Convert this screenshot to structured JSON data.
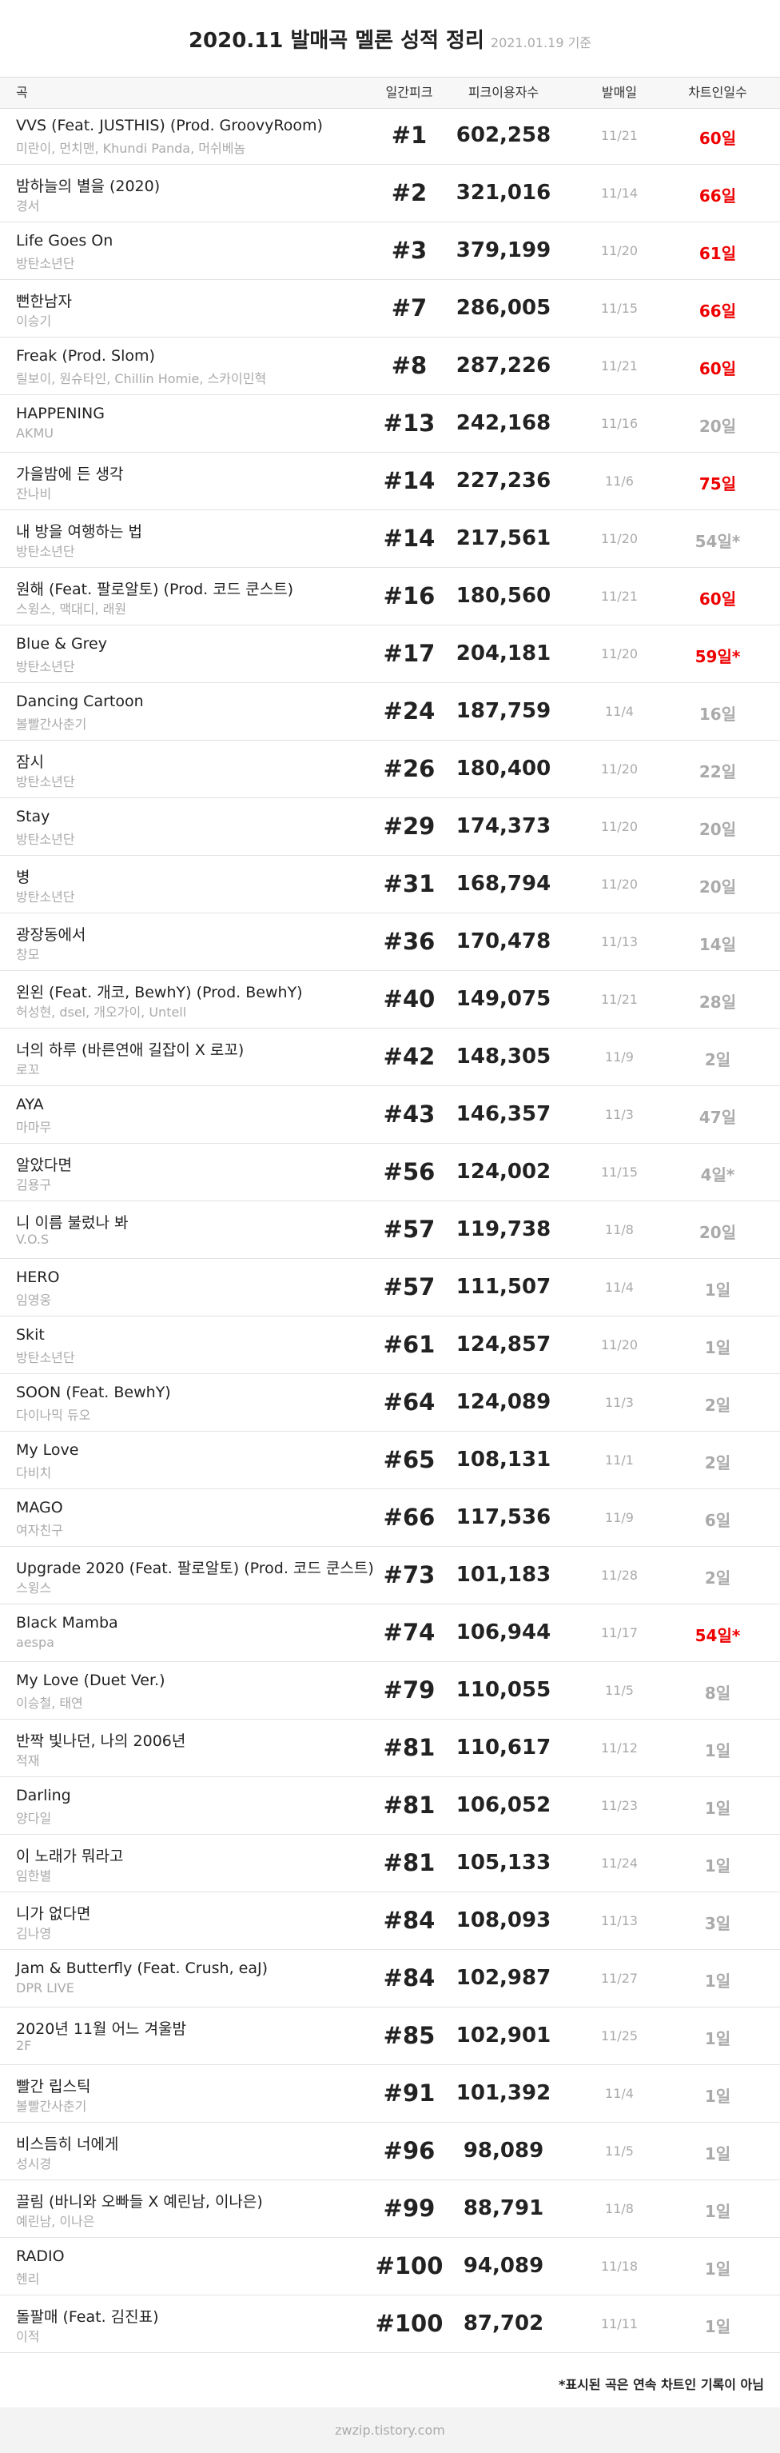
{
  "header": {
    "title": "2020.11 발매곡 멜론 성적 정리",
    "date": "2021.01.19 기준"
  },
  "table": {
    "columns": [
      "곡",
      "일간피크",
      "피크이용자수",
      "발매일",
      "차트인일수"
    ],
    "rows": [
      {
        "song": "VVS (Feat. JUSTHIS) (Prod. GroovyRoom)",
        "artist": "미란이, 먼치맨, Khundi Panda, 머쉬베놈",
        "peak": "#1",
        "users": "602,258",
        "release": "11/21",
        "days": "60일",
        "highlight": true
      },
      {
        "song": "밤하늘의 별을 (2020)",
        "artist": "경서",
        "peak": "#2",
        "users": "321,016",
        "release": "11/14",
        "days": "66일",
        "highlight": true
      },
      {
        "song": "Life Goes On",
        "artist": "방탄소년단",
        "peak": "#3",
        "users": "379,199",
        "release": "11/20",
        "days": "61일",
        "highlight": true
      },
      {
        "song": "뻔한남자",
        "artist": "이승기",
        "peak": "#7",
        "users": "286,005",
        "release": "11/15",
        "days": "66일",
        "highlight": true
      },
      {
        "song": "Freak (Prod. Slom)",
        "artist": "릴보이, 원슈타인, Chillin Homie, 스카이민혁",
        "peak": "#8",
        "users": "287,226",
        "release": "11/21",
        "days": "60일",
        "highlight": true
      },
      {
        "song": "HAPPENING",
        "artist": "AKMU",
        "peak": "#13",
        "users": "242,168",
        "release": "11/16",
        "days": "20일",
        "highlight": false
      },
      {
        "song": "가을밤에 든 생각",
        "artist": "잔나비",
        "peak": "#14",
        "users": "227,236",
        "release": "11/6",
        "days": "75일",
        "highlight": true
      },
      {
        "song": "내 방을 여행하는 법",
        "artist": "방탄소년단",
        "peak": "#14",
        "users": "217,561",
        "release": "11/20",
        "days": "54일*",
        "highlight": false
      },
      {
        "song": "원해 (Feat. 팔로알토) (Prod. 코드 쿤스트)",
        "artist": "스윙스, 맥대디, 래원",
        "peak": "#16",
        "users": "180,560",
        "release": "11/21",
        "days": "60일",
        "highlight": true
      },
      {
        "song": "Blue & Grey",
        "artist": "방탄소년단",
        "peak": "#17",
        "users": "204,181",
        "release": "11/20",
        "days": "59일*",
        "highlight": true
      },
      {
        "song": "Dancing Cartoon",
        "artist": "볼빨간사춘기",
        "peak": "#24",
        "users": "187,759",
        "release": "11/4",
        "days": "16일",
        "highlight": false
      },
      {
        "song": "잠시",
        "artist": "방탄소년단",
        "peak": "#26",
        "users": "180,400",
        "release": "11/20",
        "days": "22일",
        "highlight": false
      },
      {
        "song": "Stay",
        "artist": "방탄소년단",
        "peak": "#29",
        "users": "174,373",
        "release": "11/20",
        "days": "20일",
        "highlight": false
      },
      {
        "song": "병",
        "artist": "방탄소년단",
        "peak": "#31",
        "users": "168,794",
        "release": "11/20",
        "days": "20일",
        "highlight": false
      },
      {
        "song": "광장동에서",
        "artist": "창모",
        "peak": "#36",
        "users": "170,478",
        "release": "11/13",
        "days": "14일",
        "highlight": false
      },
      {
        "song": "왼왼 (Feat. 개코, BewhY) (Prod. BewhY)",
        "artist": "허성현, dsel, 개오가이, Untell",
        "peak": "#40",
        "users": "149,075",
        "release": "11/21",
        "days": "28일",
        "highlight": false
      },
      {
        "song": "너의 하루 (바른연애 길잡이 X 로꼬)",
        "artist": "로꼬",
        "peak": "#42",
        "users": "148,305",
        "release": "11/9",
        "days": "2일",
        "highlight": false
      },
      {
        "song": "AYA",
        "artist": "마마무",
        "peak": "#43",
        "users": "146,357",
        "release": "11/3",
        "days": "47일",
        "highlight": false
      },
      {
        "song": "알았다면",
        "artist": "김용구",
        "peak": "#56",
        "users": "124,002",
        "release": "11/15",
        "days": "4일*",
        "highlight": false
      },
      {
        "song": "니 이름 불렀나 봐",
        "artist": "V.O.S",
        "peak": "#57",
        "users": "119,738",
        "release": "11/8",
        "days": "20일",
        "highlight": false
      },
      {
        "song": "HERO",
        "artist": "임영웅",
        "peak": "#57",
        "users": "111,507",
        "release": "11/4",
        "days": "1일",
        "highlight": false
      },
      {
        "song": "Skit",
        "artist": "방탄소년단",
        "peak": "#61",
        "users": "124,857",
        "release": "11/20",
        "days": "1일",
        "highlight": false
      },
      {
        "song": "SOON (Feat. BewhY)",
        "artist": "다이나믹 듀오",
        "peak": "#64",
        "users": "124,089",
        "release": "11/3",
        "days": "2일",
        "highlight": false
      },
      {
        "song": "My Love",
        "artist": "다비치",
        "peak": "#65",
        "users": "108,131",
        "release": "11/1",
        "days": "2일",
        "highlight": false
      },
      {
        "song": "MAGO",
        "artist": "여자친구",
        "peak": "#66",
        "users": "117,536",
        "release": "11/9",
        "days": "6일",
        "highlight": false
      },
      {
        "song": "Upgrade 2020 (Feat. 팔로알토) (Prod. 코드 쿤스트)",
        "artist": "스윙스",
        "peak": "#73",
        "users": "101,183",
        "release": "11/28",
        "days": "2일",
        "highlight": false
      },
      {
        "song": "Black Mamba",
        "artist": "aespa",
        "peak": "#74",
        "users": "106,944",
        "release": "11/17",
        "days": "54일*",
        "highlight": true
      },
      {
        "song": "My Love (Duet Ver.)",
        "artist": "이승철, 태연",
        "peak": "#79",
        "users": "110,055",
        "release": "11/5",
        "days": "8일",
        "highlight": false
      },
      {
        "song": "반짝 빛나던, 나의 2006년",
        "artist": "적재",
        "peak": "#81",
        "users": "110,617",
        "release": "11/12",
        "days": "1일",
        "highlight": false
      },
      {
        "song": "Darling",
        "artist": "양다일",
        "peak": "#81",
        "users": "106,052",
        "release": "11/23",
        "days": "1일",
        "highlight": false
      },
      {
        "song": "이 노래가 뭐라고",
        "artist": "임한별",
        "peak": "#81",
        "users": "105,133",
        "release": "11/24",
        "days": "1일",
        "highlight": false
      },
      {
        "song": "니가 없다면",
        "artist": "김나영",
        "peak": "#84",
        "users": "108,093",
        "release": "11/13",
        "days": "3일",
        "highlight": false
      },
      {
        "song": "Jam & Butterfly (Feat. Crush, eaJ)",
        "artist": "DPR LIVE",
        "peak": "#84",
        "users": "102,987",
        "release": "11/27",
        "days": "1일",
        "highlight": false
      },
      {
        "song": "2020년 11월 어느 겨울밤",
        "artist": "2F",
        "peak": "#85",
        "users": "102,901",
        "release": "11/25",
        "days": "1일",
        "highlight": false
      },
      {
        "song": "빨간 립스틱",
        "artist": "볼빨간사춘기",
        "peak": "#91",
        "users": "101,392",
        "release": "11/4",
        "days": "1일",
        "highlight": false
      },
      {
        "song": "비스듬히 너에게",
        "artist": "성시경",
        "peak": "#96",
        "users": "98,089",
        "release": "11/5",
        "days": "1일",
        "highlight": false
      },
      {
        "song": "끌림 (바니와 오빠들 X 예린남, 이나은)",
        "artist": "예린남, 이나은",
        "peak": "#99",
        "users": "88,791",
        "release": "11/8",
        "days": "1일",
        "highlight": false
      },
      {
        "song": "RADIO",
        "artist": "헨리",
        "peak": "#100",
        "users": "94,089",
        "release": "11/18",
        "days": "1일",
        "highlight": false
      },
      {
        "song": "돌팔매 (Feat. 김진표)",
        "artist": "이적",
        "peak": "#100",
        "users": "87,702",
        "release": "11/11",
        "days": "1일",
        "highlight": false
      }
    ]
  },
  "note": "*표시된 곡은 연속 차트인 기록이 아님",
  "footer": "zwzip.tistory.com"
}
